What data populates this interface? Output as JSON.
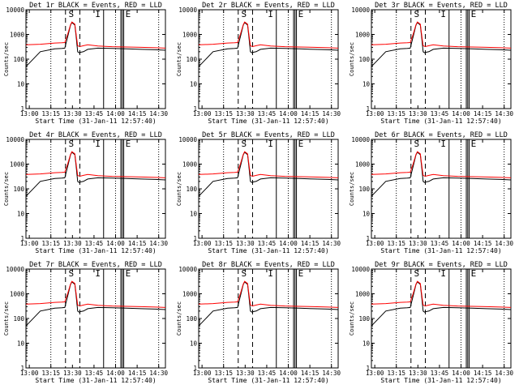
{
  "page": {
    "title_template": "{det} BLACK = Events, RED = LLD",
    "ylabel": "Counts/sec",
    "xlabel": "Start Time (31-Jan-11 12:57:40)",
    "markers": [
      "S",
      "I",
      "E"
    ]
  },
  "chart_data": [
    {
      "type": "line",
      "title": "Det 1r BLACK = Events, RED = LLD",
      "detector": "Det 1r",
      "xlabel": "Start Time (31-Jan-11 12:57:40)",
      "ylabel": "Counts/sec",
      "x_ticks": [
        "13:00",
        "13:15",
        "13:30",
        "13:45",
        "14:00",
        "14:15",
        "14:30"
      ],
      "y_ticks": [
        "1",
        "10",
        "100",
        "1000",
        "10000"
      ],
      "y_scale": "log",
      "ylim": [
        1,
        10000
      ],
      "series": [
        {
          "name": "BLACK = Events",
          "color": "#000000"
        },
        {
          "name": "RED = LLD",
          "color": "#ff0000"
        }
      ]
    },
    {
      "type": "line",
      "title": "Det 2r BLACK = Events, RED = LLD",
      "detector": "Det 2r",
      "xlabel": "Start Time (31-Jan-11 12:57:40)",
      "ylabel": "Counts/sec",
      "x_ticks": [
        "13:00",
        "13:15",
        "13:30",
        "13:45",
        "14:00",
        "14:15",
        "14:30"
      ],
      "y_ticks": [
        "1",
        "10",
        "100",
        "1000",
        "10000"
      ],
      "y_scale": "log",
      "ylim": [
        1,
        10000
      ],
      "series": [
        {
          "name": "BLACK = Events",
          "color": "#000000"
        },
        {
          "name": "RED = LLD",
          "color": "#ff0000"
        }
      ]
    },
    {
      "type": "line",
      "title": "Det 3r BLACK = Events, RED = LLD",
      "detector": "Det 3r",
      "xlabel": "Start Time (31-Jan-11 12:57:40)",
      "ylabel": "Counts/sec",
      "x_ticks": [
        "13:00",
        "13:15",
        "13:30",
        "13:45",
        "14:00",
        "14:15",
        "14:30"
      ],
      "y_ticks": [
        "1",
        "10",
        "100",
        "1000",
        "10000"
      ],
      "y_scale": "log",
      "ylim": [
        1,
        10000
      ],
      "series": [
        {
          "name": "BLACK = Events",
          "color": "#000000"
        },
        {
          "name": "RED = LLD",
          "color": "#ff0000"
        }
      ]
    },
    {
      "type": "line",
      "title": "Det 4r BLACK = Events, RED = LLD",
      "detector": "Det 4r",
      "xlabel": "Start Time (31-Jan-11 12:57:40)",
      "ylabel": "Counts/sec",
      "x_ticks": [
        "13:00",
        "13:15",
        "13:30",
        "13:45",
        "14:00",
        "14:15",
        "14:30"
      ],
      "y_ticks": [
        "1",
        "10",
        "100",
        "1000",
        "10000"
      ],
      "y_scale": "log",
      "ylim": [
        1,
        10000
      ],
      "series": [
        {
          "name": "BLACK = Events",
          "color": "#000000"
        },
        {
          "name": "RED = LLD",
          "color": "#ff0000"
        }
      ]
    },
    {
      "type": "line",
      "title": "Det 5r BLACK = Events, RED = LLD",
      "detector": "Det 5r",
      "xlabel": "Start Time (31-Jan-11 12:57:40)",
      "ylabel": "Counts/sec",
      "x_ticks": [
        "13:00",
        "13:15",
        "13:30",
        "13:45",
        "14:00",
        "14:15",
        "14:30"
      ],
      "y_ticks": [
        "1",
        "10",
        "100",
        "1000",
        "10000"
      ],
      "y_scale": "log",
      "ylim": [
        1,
        10000
      ],
      "series": [
        {
          "name": "BLACK = Events",
          "color": "#000000"
        },
        {
          "name": "RED = LLD",
          "color": "#ff0000"
        }
      ]
    },
    {
      "type": "line",
      "title": "Det 6r BLACK = Events, RED = LLD",
      "detector": "Det 6r",
      "xlabel": "Start Time (31-Jan-11 12:57:40)",
      "ylabel": "Counts/sec",
      "x_ticks": [
        "13:00",
        "13:15",
        "13:30",
        "13:45",
        "14:00",
        "14:15",
        "14:30"
      ],
      "y_ticks": [
        "1",
        "10",
        "100",
        "1000",
        "10000"
      ],
      "y_scale": "log",
      "ylim": [
        1,
        10000
      ],
      "series": [
        {
          "name": "BLACK = Events",
          "color": "#000000"
        },
        {
          "name": "RED = LLD",
          "color": "#ff0000"
        }
      ]
    },
    {
      "type": "line",
      "title": "Det 7r BLACK = Events, RED = LLD",
      "detector": "Det 7r",
      "xlabel": "Start Time (31-Jan-11 12:57:40)",
      "ylabel": "Counts/sec",
      "x_ticks": [
        "13:00",
        "13:15",
        "13:30",
        "13:45",
        "14:00",
        "14:15",
        "14:30"
      ],
      "y_ticks": [
        "1",
        "10",
        "100",
        "1000",
        "10000"
      ],
      "y_scale": "log",
      "ylim": [
        1,
        10000
      ],
      "series": [
        {
          "name": "BLACK = Events",
          "color": "#000000"
        },
        {
          "name": "RED = LLD",
          "color": "#ff0000"
        }
      ]
    },
    {
      "type": "line",
      "title": "Det 8r BLACK = Events, RED = LLD",
      "detector": "Det 8r",
      "xlabel": "Start Time (31-Jan-11 12:57:40)",
      "ylabel": "Counts/sec",
      "x_ticks": [
        "13:00",
        "13:15",
        "13:30",
        "13:45",
        "14:00",
        "14:15",
        "14:30"
      ],
      "y_ticks": [
        "1",
        "10",
        "100",
        "1000",
        "10000"
      ],
      "y_scale": "log",
      "ylim": [
        1,
        10000
      ],
      "series": [
        {
          "name": "BLACK = Events",
          "color": "#000000"
        },
        {
          "name": "RED = LLD",
          "color": "#ff0000"
        }
      ]
    },
    {
      "type": "line",
      "title": "Det 9r BLACK = Events, RED = LLD",
      "detector": "Det 9r",
      "xlabel": "Start Time (31-Jan-11 12:57:40)",
      "ylabel": "Counts/sec",
      "x_ticks": [
        "13:00",
        "13:15",
        "13:30",
        "13:45",
        "14:00",
        "14:15",
        "14:30"
      ],
      "y_ticks": [
        "1",
        "10",
        "100",
        "1000",
        "10000"
      ],
      "y_scale": "log",
      "ylim": [
        1,
        10000
      ],
      "series": [
        {
          "name": "BLACK = Events",
          "color": "#000000"
        },
        {
          "name": "RED = LLD",
          "color": "#ff0000"
        }
      ]
    }
  ],
  "shared_curve": {
    "x_minutes": [
      0,
      10,
      20,
      25,
      27,
      29,
      31,
      32,
      34,
      35,
      36,
      37,
      38,
      40,
      43,
      50,
      60,
      70,
      80,
      90,
      97
    ],
    "lld_counts": [
      380,
      400,
      450,
      460,
      470,
      1000,
      2500,
      3200,
      2600,
      900,
      350,
      330,
      330,
      350,
      380,
      340,
      320,
      310,
      300,
      290,
      280
    ],
    "events_counts": [
      50,
      200,
      260,
      270,
      280,
      800,
      2400,
      3000,
      2400,
      700,
      200,
      180,
      190,
      200,
      250,
      280,
      270,
      260,
      250,
      240,
      230
    ]
  }
}
